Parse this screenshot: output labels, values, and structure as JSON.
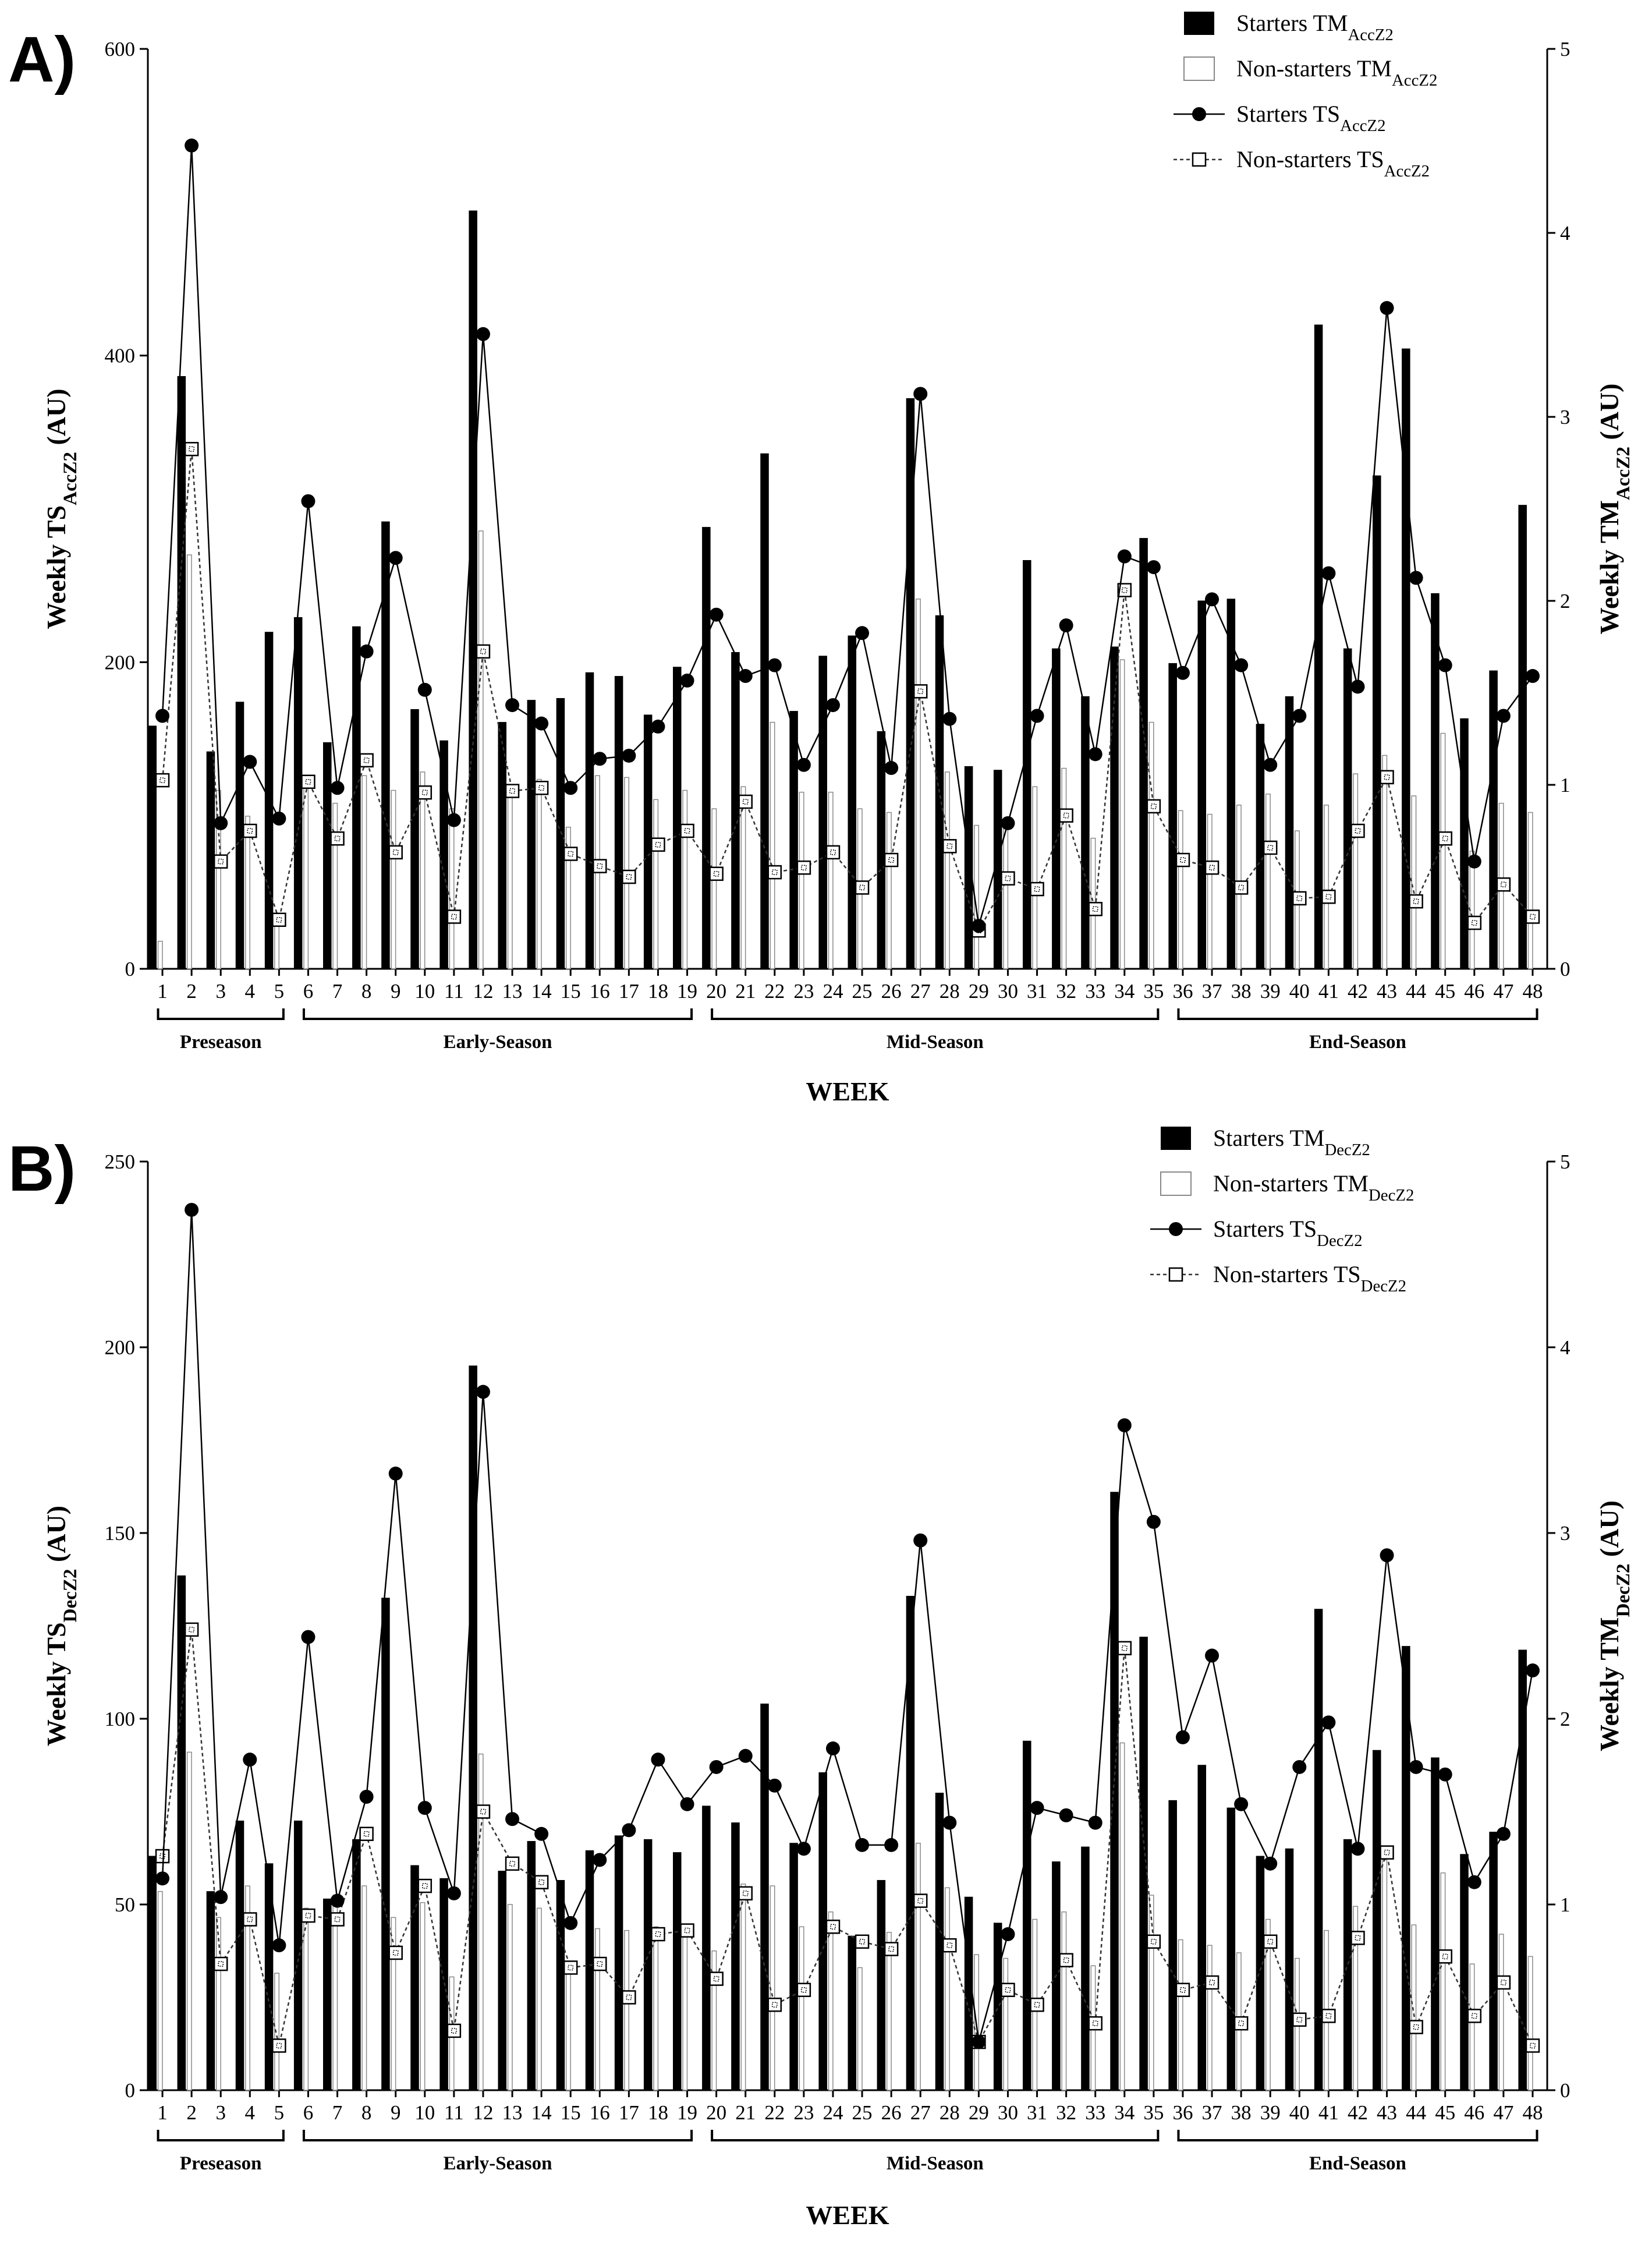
{
  "charts": [
    {
      "id": "A",
      "panel_label": "A)",
      "type": "bar+line",
      "xlabel": "WEEK",
      "ylabel_left": {
        "main": "Weekly TS",
        "sub": "AccZ2",
        "tail": " (AU)"
      },
      "ylabel_right": {
        "main": "Weekly TM",
        "sub": "AccZ2",
        "tail": " (AU)"
      },
      "ylim_left": [
        0,
        600
      ],
      "yticks_left": [
        0,
        200,
        400,
        600
      ],
      "ylim_right": [
        0,
        5
      ],
      "yticks_right": [
        0,
        1,
        2,
        3,
        4,
        5
      ],
      "categories": [
        "1",
        "2",
        "3",
        "4",
        "5",
        "6",
        "7",
        "8",
        "9",
        "10",
        "11",
        "12",
        "13",
        "14",
        "15",
        "16",
        "17",
        "18",
        "19",
        "20",
        "21",
        "22",
        "23",
        "24",
        "25",
        "26",
        "27",
        "28",
        "29",
        "30",
        "31",
        "32",
        "33",
        "34",
        "35",
        "36",
        "37",
        "38",
        "39",
        "40",
        "41",
        "42",
        "43",
        "44",
        "45",
        "46",
        "47",
        "48"
      ],
      "legend": [
        {
          "main": "Starters TM",
          "sub": "AccZ2",
          "style": "bar-black"
        },
        {
          "main": "Non-starters TM",
          "sub": "AccZ2",
          "style": "bar-white"
        },
        {
          "main": "Starters TS",
          "sub": "AccZ2",
          "style": "line-circle"
        },
        {
          "main": "Non-starters TS",
          "sub": "AccZ2",
          "style": "dash-square"
        }
      ],
      "phases": [
        {
          "label": "Preseason",
          "from": 1,
          "to": 5
        },
        {
          "label": "Early-Season",
          "from": 6,
          "to": 19
        },
        {
          "label": "Mid-Season",
          "from": 20,
          "to": 35
        },
        {
          "label": "End-Season",
          "from": 36,
          "to": 48
        }
      ],
      "series": [
        {
          "name": "Starters TM",
          "axis": "right",
          "kind": "bar",
          "color": "#000000",
          "values": [
            1.32,
            3.22,
            1.18,
            1.45,
            1.83,
            1.91,
            1.23,
            1.86,
            2.43,
            1.41,
            1.24,
            4.12,
            1.34,
            1.46,
            1.47,
            1.61,
            1.59,
            1.38,
            1.64,
            2.4,
            1.72,
            2.8,
            1.4,
            1.7,
            1.81,
            1.29,
            3.1,
            1.92,
            1.1,
            1.08,
            2.22,
            1.74,
            1.48,
            1.75,
            2.34,
            1.66,
            2.0,
            2.01,
            1.33,
            1.48,
            3.5,
            1.74,
            2.68,
            3.37,
            2.04,
            1.36,
            1.62,
            2.52
          ]
        },
        {
          "name": "Non-starters TM",
          "axis": "right",
          "kind": "bar",
          "color": "#ffffff",
          "values": [
            0.15,
            2.25,
            0.97,
            0.83,
            0.3,
            1.05,
            0.9,
            1.05,
            0.97,
            1.07,
            0.87,
            2.38,
            1.0,
            1.03,
            0.77,
            1.05,
            1.04,
            0.92,
            0.97,
            0.87,
            0.99,
            1.34,
            0.96,
            0.96,
            0.87,
            0.85,
            2.01,
            1.07,
            0.78,
            0.8,
            0.99,
            1.09,
            0.71,
            1.68,
            1.34,
            0.86,
            0.84,
            0.89,
            0.95,
            0.75,
            0.89,
            1.06,
            1.16,
            0.94,
            1.28,
            0.64,
            0.9,
            0.85
          ]
        },
        {
          "name": "Starters TS",
          "axis": "left",
          "kind": "line",
          "marker": "circle",
          "values": [
            165,
            537,
            95,
            135,
            98,
            305,
            118,
            207,
            268,
            182,
            97,
            414,
            172,
            160,
            118,
            137,
            139,
            158,
            188,
            231,
            191,
            198,
            133,
            172,
            219,
            131,
            375,
            163,
            28,
            95,
            165,
            224,
            140,
            269,
            262,
            193,
            241,
            198,
            133,
            165,
            258,
            184,
            431,
            255,
            198,
            70,
            165,
            191
          ]
        },
        {
          "name": "Non-starters TS",
          "axis": "left",
          "kind": "dashed",
          "marker": "square",
          "values": [
            123,
            339,
            70,
            90,
            32,
            122,
            85,
            136,
            76,
            115,
            34,
            207,
            116,
            118,
            75,
            67,
            60,
            81,
            90,
            62,
            109,
            63,
            66,
            76,
            53,
            71,
            181,
            80,
            25,
            59,
            52,
            100,
            39,
            247,
            106,
            71,
            66,
            53,
            79,
            46,
            47,
            90,
            125,
            44,
            85,
            30,
            55,
            34
          ]
        }
      ]
    },
    {
      "id": "B",
      "panel_label": "B)",
      "type": "bar+line",
      "xlabel": "WEEK",
      "ylabel_left": {
        "main": "Weekly TS",
        "sub": "DecZ2",
        "tail": " (AU)"
      },
      "ylabel_right": {
        "main": "Weekly TM",
        "sub": "DecZ2",
        "tail": " (AU)"
      },
      "ylim_left": [
        0,
        250
      ],
      "yticks_left": [
        0,
        50,
        100,
        150,
        200,
        250
      ],
      "ylim_right": [
        0,
        5
      ],
      "yticks_right": [
        0,
        1,
        2,
        3,
        4,
        5
      ],
      "categories": [
        "1",
        "2",
        "3",
        "4",
        "5",
        "6",
        "7",
        "8",
        "9",
        "10",
        "11",
        "12",
        "13",
        "14",
        "15",
        "16",
        "17",
        "18",
        "19",
        "20",
        "21",
        "22",
        "23",
        "24",
        "25",
        "26",
        "27",
        "28",
        "29",
        "30",
        "31",
        "32",
        "33",
        "34",
        "35",
        "36",
        "37",
        "38",
        "39",
        "40",
        "41",
        "42",
        "43",
        "44",
        "45",
        "46",
        "47",
        "48"
      ],
      "legend": [
        {
          "main": "Starters TM",
          "sub": "DecZ2",
          "style": "bar-black"
        },
        {
          "main": "Non-starters TM",
          "sub": "DecZ2",
          "style": "bar-white"
        },
        {
          "main": "Starters TS",
          "sub": "DecZ2",
          "style": "line-circle"
        },
        {
          "main": "Non-starters TS",
          "sub": "DecZ2",
          "style": "dash-square"
        }
      ],
      "phases": [
        {
          "label": "Preseason",
          "from": 1,
          "to": 5
        },
        {
          "label": "Early-Season",
          "from": 6,
          "to": 19
        },
        {
          "label": "Mid-Season",
          "from": 20,
          "to": 35
        },
        {
          "label": "End-Season",
          "from": 36,
          "to": 48
        }
      ],
      "series": [
        {
          "name": "Starters TM",
          "axis": "right",
          "kind": "bar",
          "color": "#000000",
          "values": [
            1.26,
            2.77,
            1.07,
            1.45,
            1.22,
            1.45,
            1.03,
            1.35,
            2.65,
            1.21,
            1.14,
            3.9,
            1.18,
            1.34,
            1.13,
            1.29,
            1.37,
            1.35,
            1.28,
            1.53,
            1.44,
            2.08,
            1.33,
            1.71,
            0.83,
            1.13,
            2.66,
            1.6,
            1.04,
            0.9,
            1.88,
            1.23,
            1.31,
            3.22,
            2.44,
            1.56,
            1.75,
            1.52,
            1.26,
            1.3,
            2.59,
            1.35,
            1.83,
            2.39,
            1.79,
            1.27,
            1.39,
            2.37
          ]
        },
        {
          "name": "Non-starters TM",
          "axis": "right",
          "kind": "bar",
          "color": "#ffffff",
          "values": [
            1.07,
            1.82,
            0.93,
            1.1,
            0.63,
            0.98,
            1.05,
            1.1,
            0.93,
            1.01,
            0.61,
            1.81,
            1.0,
            0.98,
            0.64,
            0.87,
            0.86,
            0.88,
            0.85,
            0.75,
            1.11,
            1.1,
            0.88,
            0.96,
            0.66,
            0.85,
            1.33,
            1.09,
            0.73,
            0.71,
            0.92,
            0.96,
            0.67,
            1.87,
            1.05,
            0.81,
            0.78,
            0.74,
            0.92,
            0.71,
            0.86,
            0.99,
            1.24,
            0.89,
            1.17,
            0.68,
            0.84,
            0.72
          ]
        },
        {
          "name": "Starters TS",
          "axis": "left",
          "kind": "line",
          "marker": "circle",
          "values": [
            57,
            237,
            52,
            89,
            39,
            122,
            51,
            79,
            166,
            76,
            53,
            188,
            73,
            69,
            45,
            62,
            70,
            89,
            77,
            87,
            90,
            82,
            65,
            92,
            66,
            66,
            148,
            72,
            13,
            42,
            76,
            74,
            72,
            179,
            153,
            95,
            117,
            77,
            61,
            87,
            99,
            65,
            144,
            87,
            85,
            56,
            69,
            113
          ]
        },
        {
          "name": "Non-starters TS",
          "axis": "left",
          "kind": "dashed",
          "marker": "square",
          "values": [
            63,
            124,
            34,
            46,
            12,
            47,
            46,
            69,
            37,
            55,
            16,
            75,
            61,
            56,
            33,
            34,
            25,
            42,
            43,
            30,
            53,
            23,
            27,
            44,
            40,
            38,
            51,
            39,
            13,
            27,
            23,
            35,
            18,
            119,
            40,
            27,
            29,
            18,
            40,
            19,
            20,
            41,
            64,
            17,
            36,
            20,
            29,
            12
          ]
        }
      ]
    }
  ]
}
